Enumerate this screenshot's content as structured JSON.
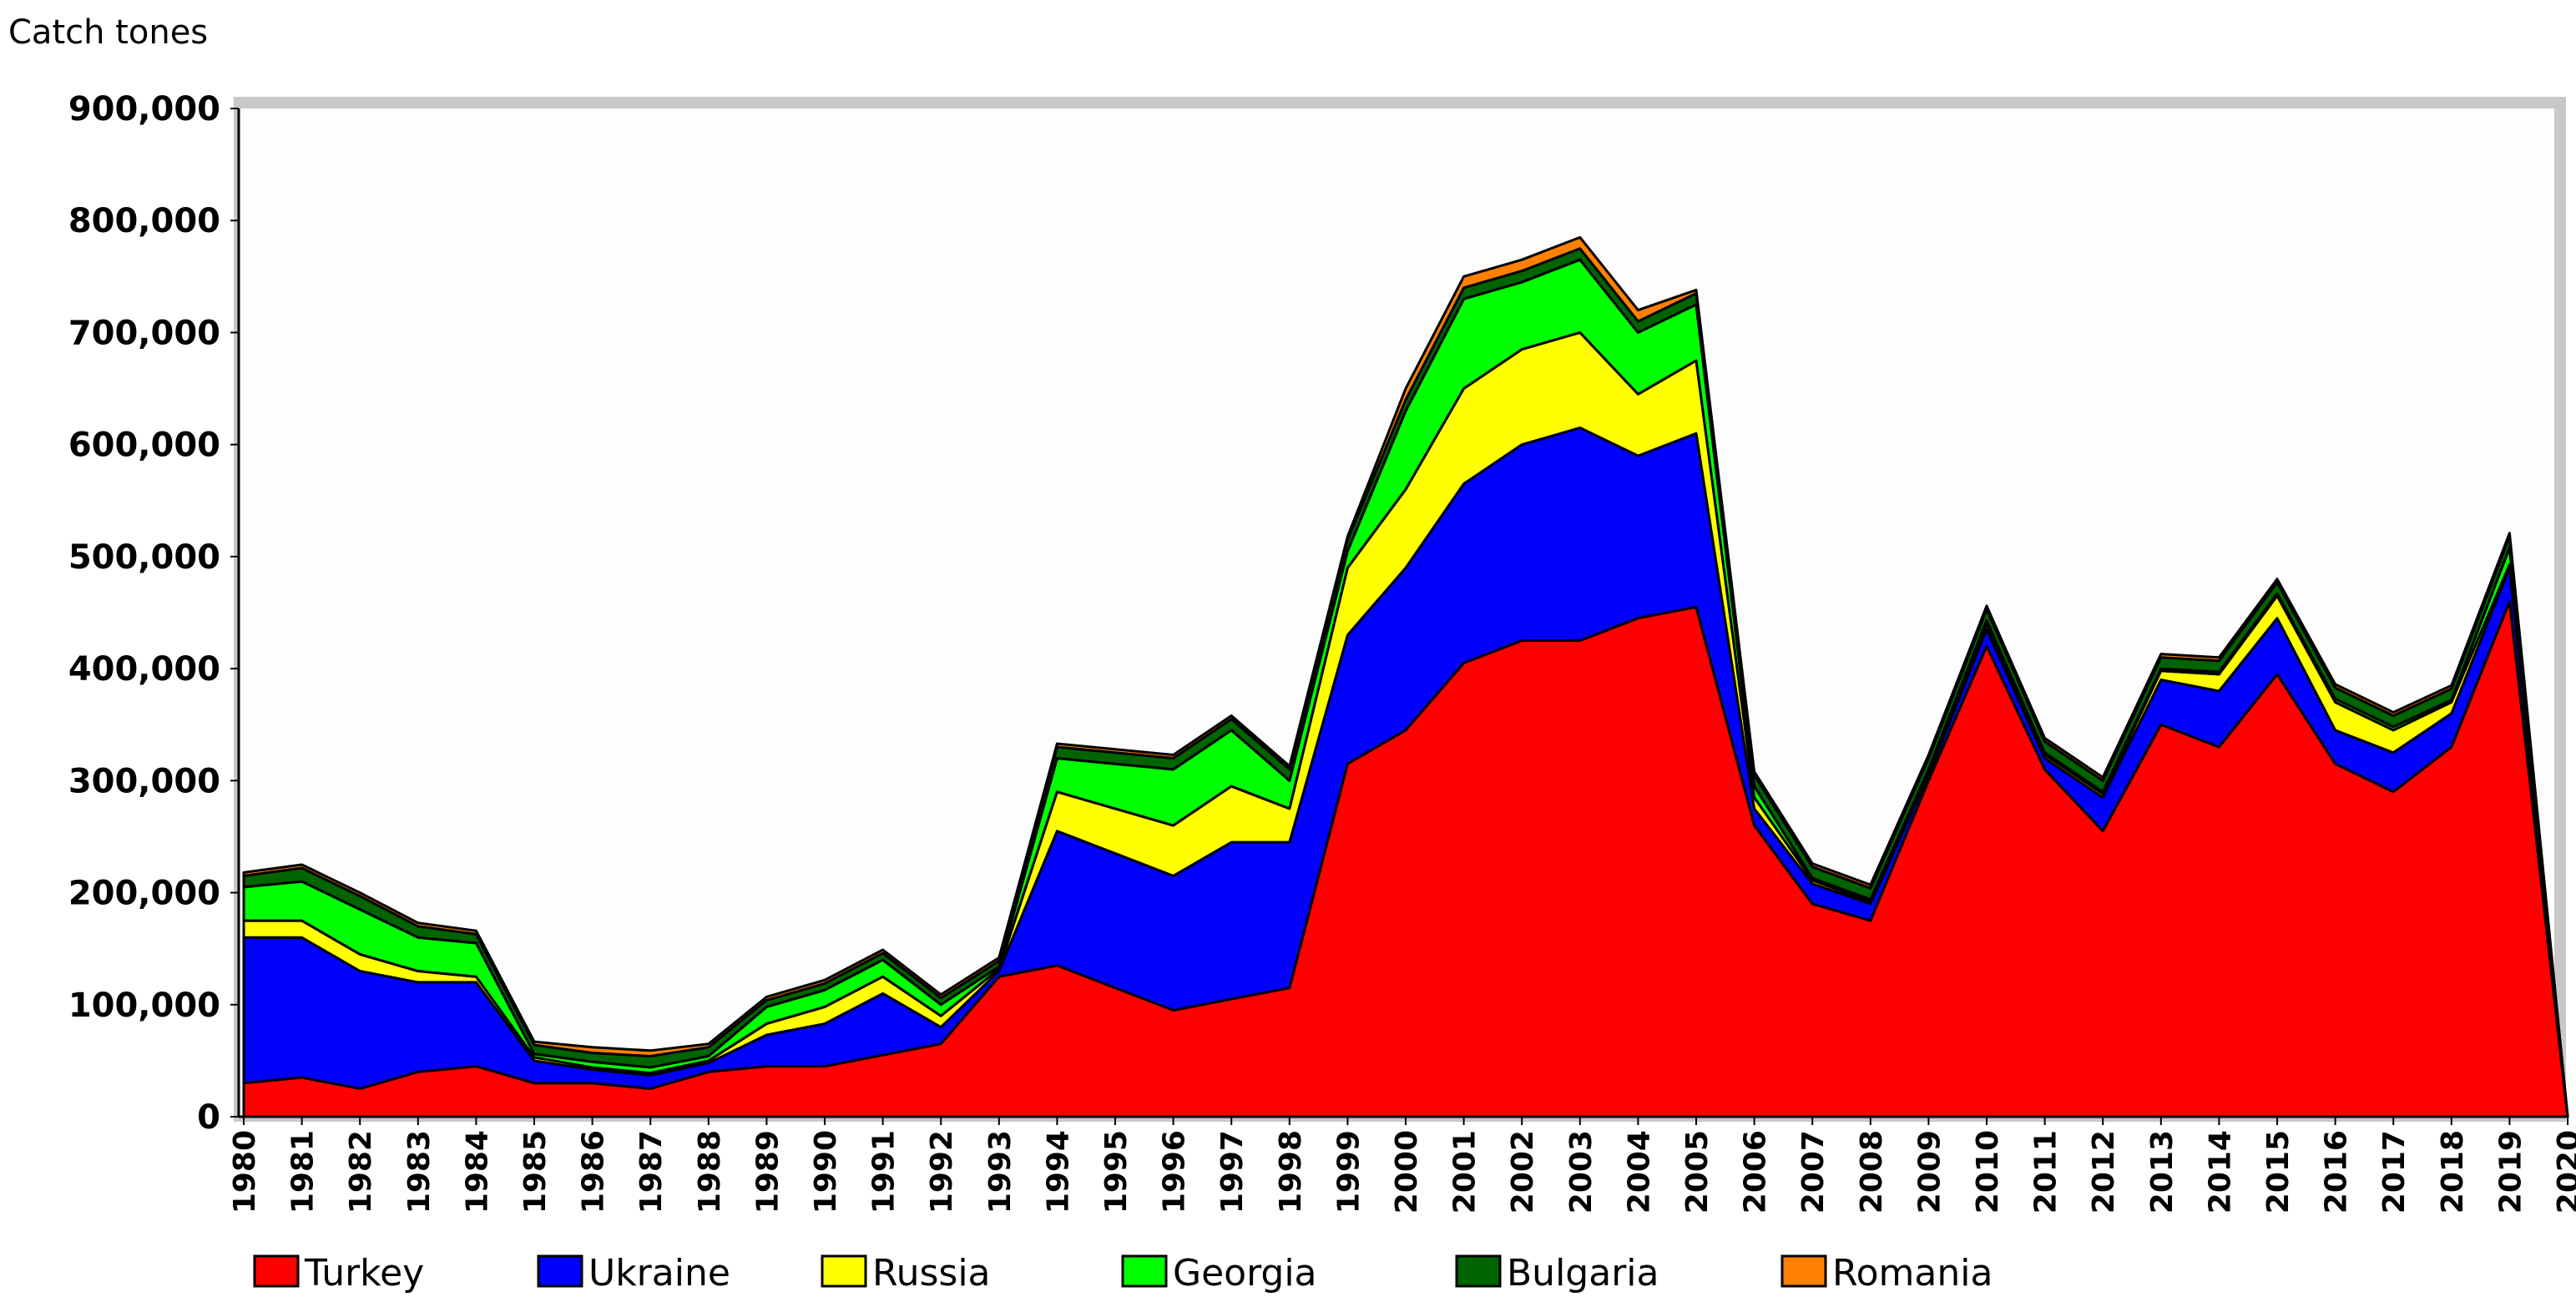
{
  "chart_data": {
    "type": "area",
    "stacked": true,
    "ylabel": "Catch tones",
    "xlabel": "",
    "title": "",
    "ylim": [
      0,
      900000
    ],
    "yticks": [
      0,
      100000,
      200000,
      300000,
      400000,
      500000,
      600000,
      700000,
      800000,
      900000
    ],
    "ytick_labels": [
      "0",
      "100,000",
      "200,000",
      "300,000",
      "400,000",
      "500,000",
      "600,000",
      "700,000",
      "800,000",
      "900,000"
    ],
    "grid": false,
    "legend_position": "bottom",
    "categories": [
      "1980",
      "1981",
      "1982",
      "1983",
      "1984",
      "1985",
      "1986",
      "1987",
      "1988",
      "1989",
      "1990",
      "1991",
      "1992",
      "1993",
      "1994",
      "1995",
      "1996",
      "1997",
      "1998",
      "1999",
      "2000",
      "2001",
      "2002",
      "2003",
      "2004",
      "2005",
      "2006",
      "2007",
      "2008",
      "2009",
      "2010",
      "2011",
      "2012",
      "2013",
      "2014",
      "2015",
      "2016",
      "2017",
      "2018",
      "2019",
      "2020"
    ],
    "series": [
      {
        "name": "Turkey",
        "color": "#ff0000",
        "values": [
          30000,
          35000,
          25000,
          40000,
          45000,
          30000,
          30000,
          25000,
          40000,
          45000,
          45000,
          55000,
          65000,
          125000,
          135000,
          115000,
          95000,
          105000,
          115000,
          315000,
          345000,
          405000,
          425000,
          425000,
          445000,
          455000,
          260000,
          190000,
          175000,
          300000,
          420000,
          310000,
          255000,
          350000,
          330000,
          395000,
          315000,
          290000,
          330000,
          460000,
          0
        ]
      },
      {
        "name": "Ukraine",
        "color": "#0000ff",
        "values": [
          130000,
          125000,
          105000,
          80000,
          75000,
          20000,
          12000,
          12000,
          8000,
          28000,
          38000,
          55000,
          15000,
          5000,
          120000,
          120000,
          120000,
          140000,
          130000,
          115000,
          145000,
          160000,
          175000,
          190000,
          145000,
          155000,
          15000,
          18000,
          15000,
          5000,
          15000,
          10000,
          30000,
          40000,
          50000,
          50000,
          30000,
          35000,
          30000,
          30000,
          0
        ]
      },
      {
        "name": "Russia",
        "color": "#ffff00",
        "values": [
          15000,
          15000,
          15000,
          10000,
          5000,
          3000,
          2000,
          2000,
          2000,
          10000,
          15000,
          15000,
          10000,
          2000,
          35000,
          40000,
          45000,
          50000,
          30000,
          60000,
          70000,
          85000,
          85000,
          85000,
          55000,
          65000,
          10000,
          3000,
          2000,
          3000,
          5000,
          3000,
          3000,
          8000,
          15000,
          20000,
          25000,
          20000,
          10000,
          3000,
          0
        ]
      },
      {
        "name": "Georgia",
        "color": "#00ff00",
        "values": [
          30000,
          35000,
          40000,
          30000,
          30000,
          3000,
          5000,
          5000,
          4000,
          15000,
          15000,
          15000,
          10000,
          2000,
          30000,
          40000,
          50000,
          50000,
          25000,
          15000,
          70000,
          80000,
          60000,
          65000,
          55000,
          50000,
          10000,
          2000,
          2000,
          2000,
          3000,
          2000,
          2000,
          2000,
          2000,
          2000,
          3000,
          3000,
          2000,
          15000,
          0
        ]
      },
      {
        "name": "Bulgaria",
        "color": "#006400",
        "values": [
          10000,
          12000,
          12000,
          10000,
          8000,
          8000,
          8000,
          10000,
          8000,
          6000,
          6000,
          6000,
          6000,
          5000,
          10000,
          10000,
          10000,
          10000,
          10000,
          10000,
          10000,
          10000,
          10000,
          10000,
          10000,
          10000,
          10000,
          10000,
          10000,
          10000,
          10000,
          10000,
          10000,
          10000,
          10000,
          10000,
          10000,
          10000,
          10000,
          10000,
          0
        ]
      },
      {
        "name": "Romania",
        "color": "#ff8000",
        "values": [
          3000,
          3000,
          3000,
          3000,
          3000,
          3000,
          5000,
          5000,
          3000,
          3000,
          3000,
          3000,
          3000,
          3000,
          3000,
          3000,
          3000,
          3000,
          3000,
          3000,
          10000,
          10000,
          10000,
          10000,
          10000,
          3000,
          3000,
          3000,
          3000,
          3000,
          3000,
          3000,
          3000,
          3000,
          3000,
          3000,
          3000,
          3000,
          3000,
          3000,
          0
        ]
      }
    ]
  }
}
